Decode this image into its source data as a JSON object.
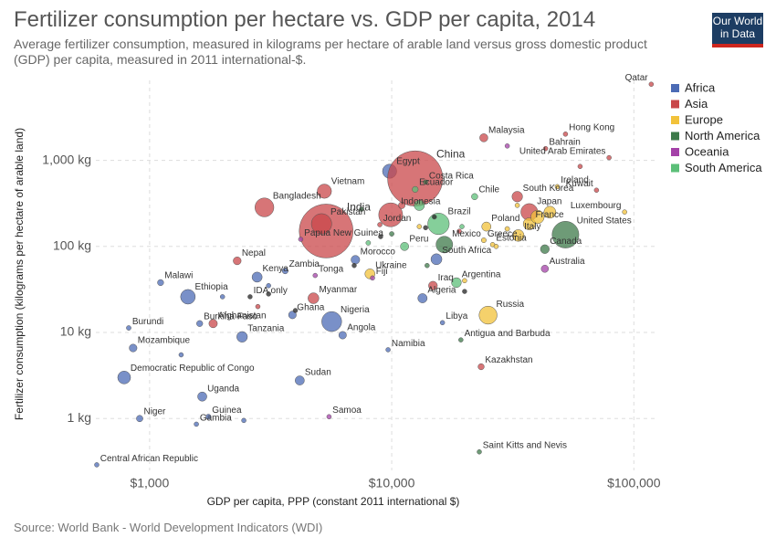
{
  "chart_data": {
    "type": "scatter",
    "title": "Fertilizer consumption per hectare vs. GDP per capita, 2014",
    "subtitle": "Average fertilizer consumption, measured in kilograms per hectare of arable land versus gross domestic product (GDP) per capita, measured in 2011 international-$.",
    "logo": [
      "Our World",
      "in Data"
    ],
    "source": "Source: World Bank - World Development Indicators (WDI)",
    "x_label": "GDP per capita, PPP (constant 2011 international $)",
    "y_label": "Fertilizer consumption (kilograms per hectare of arable land)",
    "x_log": true,
    "y_log": true,
    "grid": true,
    "legend": "right",
    "xlim": [
      550,
      125000
    ],
    "xticks": [
      {
        "value": 1000,
        "label": "$1,000"
      },
      {
        "value": 10000,
        "label": "$10,000"
      },
      {
        "value": 100000,
        "label": "$100,000"
      }
    ],
    "ylim": [
      0.25,
      8500
    ],
    "yticks": [
      {
        "value": 1,
        "label": "1 kg"
      },
      {
        "value": 10,
        "label": "10 kg"
      },
      {
        "value": 100,
        "label": "100 kg"
      },
      {
        "value": 1000,
        "label": "1,000 kg"
      }
    ],
    "series": [
      {
        "name": "Africa",
        "color": "#4c6bb5",
        "x": [
          9800,
          1110,
          1440,
          2780,
          3630,
          1610,
          2410,
          3890,
          5650,
          6270,
          7080,
          13400,
          16200,
          15300,
          820,
          855,
          785,
          1650,
          1750,
          1560,
          910,
          4170,
          605,
          9660,
          1350,
          2000,
          2450,
          3100
        ],
        "values": [
          748,
          38,
          26,
          44,
          52,
          12.7,
          8.9,
          16,
          13.4,
          9.3,
          70,
          25,
          13,
          71,
          11.3,
          6.6,
          3.0,
          1.8,
          1.05,
          0.86,
          1.0,
          2.77,
          0.29,
          6.3,
          5.5,
          26,
          0.95,
          35
        ],
        "sizes": [
          90,
          17,
          97,
          46,
          16,
          17,
          51,
          27,
          177,
          26,
          34,
          39,
          6,
          54,
          10,
          27,
          74,
          38,
          12,
          2,
          19,
          38,
          4.6,
          2.4,
          3,
          5,
          1,
          5
        ],
        "labels": [
          "Egypt",
          "Malawi",
          "Ethiopia",
          "Kenya",
          "Zambia",
          "Burkina Faso",
          "Tanzania",
          "Ghana",
          "Nigeria",
          "Angola",
          "Morocco",
          "Algeria",
          "Libya",
          "South Africa",
          "Burundi",
          "Mozambique",
          "Democratic Republic of Congo",
          "Uganda",
          "Guinea",
          "Gambia",
          "Niger",
          "Sudan",
          "Central African Republic",
          "Namibia",
          null,
          null,
          null,
          null
        ]
      },
      {
        "name": "Asia",
        "color": "#c9474a",
        "x": [
          12500,
          5360,
          5130,
          5270,
          2980,
          9900,
          24000,
          52200,
          43200,
          79000,
          118000,
          70100,
          33000,
          37000,
          2300,
          1830,
          8930,
          14800,
          23400,
          4750,
          11000,
          19000,
          60000,
          2800
        ],
        "values": [
          616,
          151,
          183,
          438,
          284,
          233,
          1830,
          2020,
          1370,
          1075,
          7660,
          450,
          379,
          251,
          68,
          12.7,
          179,
          35,
          4,
          25,
          300,
          150,
          850,
          20
        ],
        "sizes": [
          1364,
          1295,
          185,
          91,
          159,
          255,
          30,
          7,
          1.4,
          9,
          2.2,
          3.8,
          50,
          127,
          28,
          32,
          9,
          35,
          17,
          53,
          20,
          8,
          1,
          3
        ],
        "labels": [
          "China",
          "India",
          "Pakistan",
          "Vietnam",
          "Bangladesh",
          "Indonesia",
          "Malaysia",
          "Hong Kong",
          "Bahrain",
          "United Arab Emirates",
          "Qatar",
          "Kuwait",
          "South Korea",
          "Japan",
          "Nepal",
          "Afghanistan",
          "Jordan",
          "Iraq",
          "Kazakhstan",
          "Myanmar",
          null,
          null,
          null,
          null
        ]
      },
      {
        "name": "Europe",
        "color": "#f2c23a",
        "x": [
          25000,
          8130,
          24600,
          24000,
          26100,
          33300,
          37000,
          48300,
          91600,
          40000,
          45000,
          30000,
          27000,
          20000,
          13000,
          33000
        ],
        "values": [
          15.9,
          48,
          170,
          118,
          105,
          134,
          183,
          495,
          251,
          220,
          250,
          160,
          100,
          40,
          170,
          300
        ],
        "sizes": [
          144,
          45,
          38,
          11,
          1.3,
          61,
          66,
          4.6,
          0.55,
          81,
          64,
          10,
          5,
          3,
          7,
          2
        ],
        "labels": [
          "Russia",
          "Ukraine",
          "Poland",
          "Greece",
          "Estonia",
          "Italy",
          "France",
          "Ireland",
          "Luxembourg",
          null,
          null,
          null,
          null,
          null,
          null,
          null
        ]
      },
      {
        "name": "North America",
        "color": "#3d7a4a",
        "x": [
          13800,
          16500,
          52200,
          42900,
          19300,
          23000,
          7500,
          10000,
          14000
        ],
        "values": [
          559,
          105,
          137,
          93,
          8.2,
          0.41,
          270,
          140,
          60
        ],
        "sizes": [
          4.8,
          124,
          319,
          35,
          0.1,
          0.05,
          2,
          10,
          4
        ],
        "labels": [
          "Costa Rica",
          "Mexico",
          "United States",
          "Canada",
          "Antigua and Barbuda",
          "Saint Kitts and Nevis",
          null,
          null,
          null
        ]
      },
      {
        "name": "Oceania",
        "color": "#a441a8",
        "x": [
          4210,
          4830,
          8330,
          42900,
          5510,
          30000
        ],
        "values": [
          121,
          46,
          43,
          55,
          1.05,
          1470
        ],
        "sizes": [
          7.5,
          0.1,
          0.9,
          24,
          0.2,
          0.5
        ],
        "labels": [
          "Papua New Guinea",
          "Tonga",
          "Fiji",
          "Australia",
          "Samoa",
          null
        ]
      },
      {
        "name": "South America",
        "color": "#5cbf78",
        "x": [
          15600,
          22000,
          11300,
          18500,
          12500,
          13000,
          19500,
          8000
        ],
        "values": [
          183,
          379,
          100,
          38,
          460,
          300,
          170,
          110
        ],
        "sizes": [
          206,
          18,
          31,
          43,
          16,
          48,
          3,
          10
        ],
        "labels": [
          "Brazil",
          "Chile",
          "Peru",
          "Argentina",
          "Ecuador",
          null,
          null,
          null
        ]
      },
      {
        "name": null,
        "color": "#222222",
        "x": [
          2600,
          3100,
          4000,
          9000,
          15000,
          20000,
          13800,
          7000
        ],
        "values": [
          26,
          28,
          18,
          130,
          220,
          30,
          165,
          60
        ],
        "sizes": [
          0.5,
          0.5,
          0.5,
          0.5,
          0.5,
          0.5,
          0.5,
          0.5
        ],
        "labels": [
          "IDA only",
          null,
          null,
          null,
          null,
          null,
          null,
          null
        ]
      }
    ]
  }
}
